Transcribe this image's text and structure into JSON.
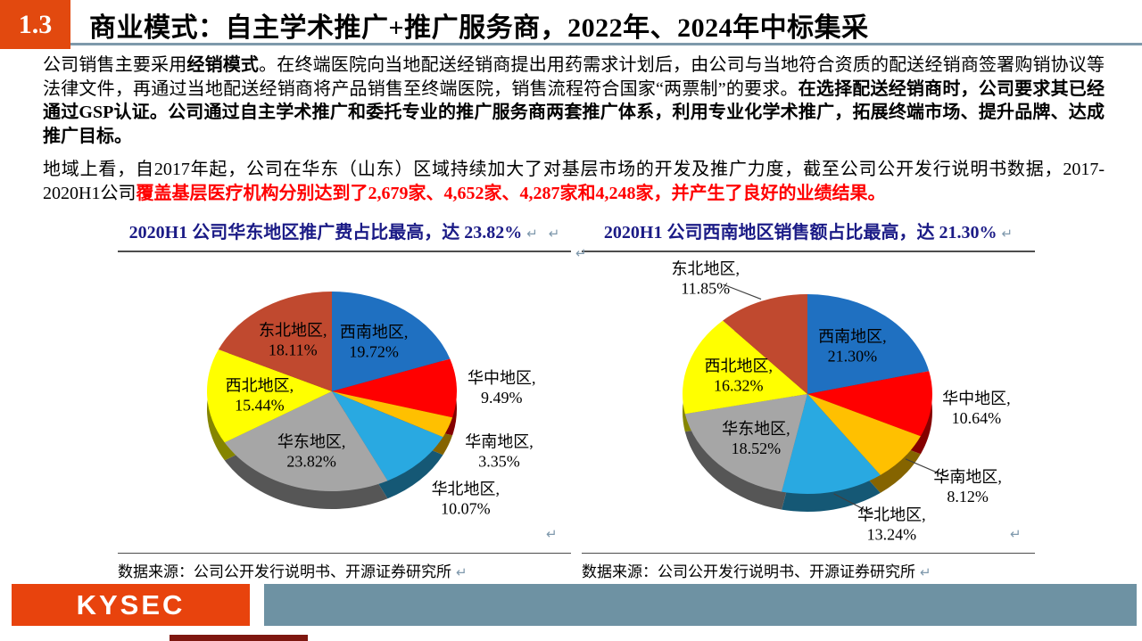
{
  "header": {
    "badge": "1.3",
    "title": "商业模式：自主学术推广+推广服务商，2022年、2024年中标集采"
  },
  "paragraphs": [
    {
      "segments": [
        {
          "text": "公司销售主要采用",
          "bold": false
        },
        {
          "text": "经销模式",
          "bold": true
        },
        {
          "text": "。在终端医院向当地配送经销商提出用药需求计划后，由公司与当地符合资质的配送经销商签署购销协议等法律文件，再通过当地配送经销商将产品销售至终端医院，销售流程符合国家“两票制”的要求。",
          "bold": false
        },
        {
          "text": "在选择配送经销商时，公司要求其已经通过GSP认证。公司通过自主学术推广和委托专业的推广服务商两套推广体系，利用专业化学术推广，拓展终端市场、提升品牌、达成推广目标。",
          "bold": true
        }
      ]
    },
    {
      "segments": [
        {
          "text": "地域上看，自2017年起，公司在华东（山东）区域持续加大了对基层市场的开发及推广力度，截至公司公开发行说明书数据，2017-2020H1公司",
          "bold": false
        },
        {
          "text": "覆盖基层医疗机构分别达到了2,679家、4,652家、4,287家和4,248家，并产生了良好的业绩结果。",
          "bold": true,
          "color": "#FF0000"
        }
      ]
    }
  ],
  "chart_data": [
    {
      "type": "pie",
      "title": "2020H1 公司华东地区推广费占比最高，达 23.82%",
      "source": "数据来源：公司公开发行说明书、开源证券研究所",
      "slices": [
        {
          "name": "西南地区",
          "value": 19.72,
          "display_name": "西南地区,",
          "display_value": "19.72%",
          "color": "#1F70C1",
          "placement": "inside",
          "leader": false
        },
        {
          "name": "华中地区",
          "value": 9.49,
          "display_name": "华中地区,",
          "display_value": "9.49%",
          "color": "#FF0000",
          "placement": "outside",
          "leader": false
        },
        {
          "name": "华南地区",
          "value": 3.35,
          "display_name": "华南地区,",
          "display_value": "3.35%",
          "color": "#FFC000",
          "placement": "outside",
          "leader": false
        },
        {
          "name": "华北地区",
          "value": 10.07,
          "display_name": "华北地区,",
          "display_value": "10.07%",
          "color": "#29A9E1",
          "placement": "outside",
          "leader": false
        },
        {
          "name": "华东地区",
          "value": 23.82,
          "display_name": "华东地区,",
          "display_value": "23.82%",
          "color": "#A6A6A6",
          "placement": "inside",
          "leader": false
        },
        {
          "name": "西北地区",
          "value": 15.44,
          "display_name": "西北地区,",
          "display_value": "15.44%",
          "color": "#FFFF00",
          "placement": "inside",
          "leader": false
        },
        {
          "name": "东北地区",
          "value": 18.11,
          "display_name": "东北地区,",
          "display_value": "18.11%",
          "color": "#C0492F",
          "placement": "inside",
          "leader": false
        }
      ]
    },
    {
      "type": "pie",
      "title": "2020H1 公司西南地区销售额占比最高，达 21.30%",
      "source": "数据来源：公司公开发行说明书、开源证券研究所",
      "slices": [
        {
          "name": "西南地区",
          "value": 21.3,
          "display_name": "西南地区,",
          "display_value": "21.30%",
          "color": "#1F70C1",
          "placement": "inside",
          "leader": false
        },
        {
          "name": "华中地区",
          "value": 10.64,
          "display_name": "华中地区,",
          "display_value": "10.64%",
          "color": "#FF0000",
          "placement": "outside",
          "leader": false
        },
        {
          "name": "华南地区",
          "value": 8.12,
          "display_name": "华南地区,",
          "display_value": "8.12%",
          "color": "#FFC000",
          "placement": "outside",
          "leader": true
        },
        {
          "name": "华北地区",
          "value": 13.24,
          "display_name": "华北地区,",
          "display_value": "13.24%",
          "color": "#29A9E1",
          "placement": "outside",
          "leader": true
        },
        {
          "name": "华东地区",
          "value": 18.52,
          "display_name": "华东地区,",
          "display_value": "18.52%",
          "color": "#A6A6A6",
          "placement": "inside",
          "leader": false
        },
        {
          "name": "西北地区",
          "value": 16.32,
          "display_name": "西北地区,",
          "display_value": "16.32%",
          "color": "#FFFF00",
          "placement": "inside",
          "leader": false
        },
        {
          "name": "东北地区",
          "value": 11.85,
          "display_name": "东北地区,",
          "display_value": "11.85%",
          "color": "#C0492F",
          "placement": "outside",
          "leader": true
        }
      ]
    }
  ],
  "glyphs": {
    "return_mark": "↵"
  },
  "footer": {
    "logo_text": "KYSEC"
  },
  "colors": {
    "accent_red": "#E2490F",
    "logo_red": "#E8430D",
    "footer_bar": "#6E92A3",
    "chart_title_navy": "#1B1B86",
    "highlight_red": "#FF0000",
    "header_rule": "#7E99AB"
  }
}
